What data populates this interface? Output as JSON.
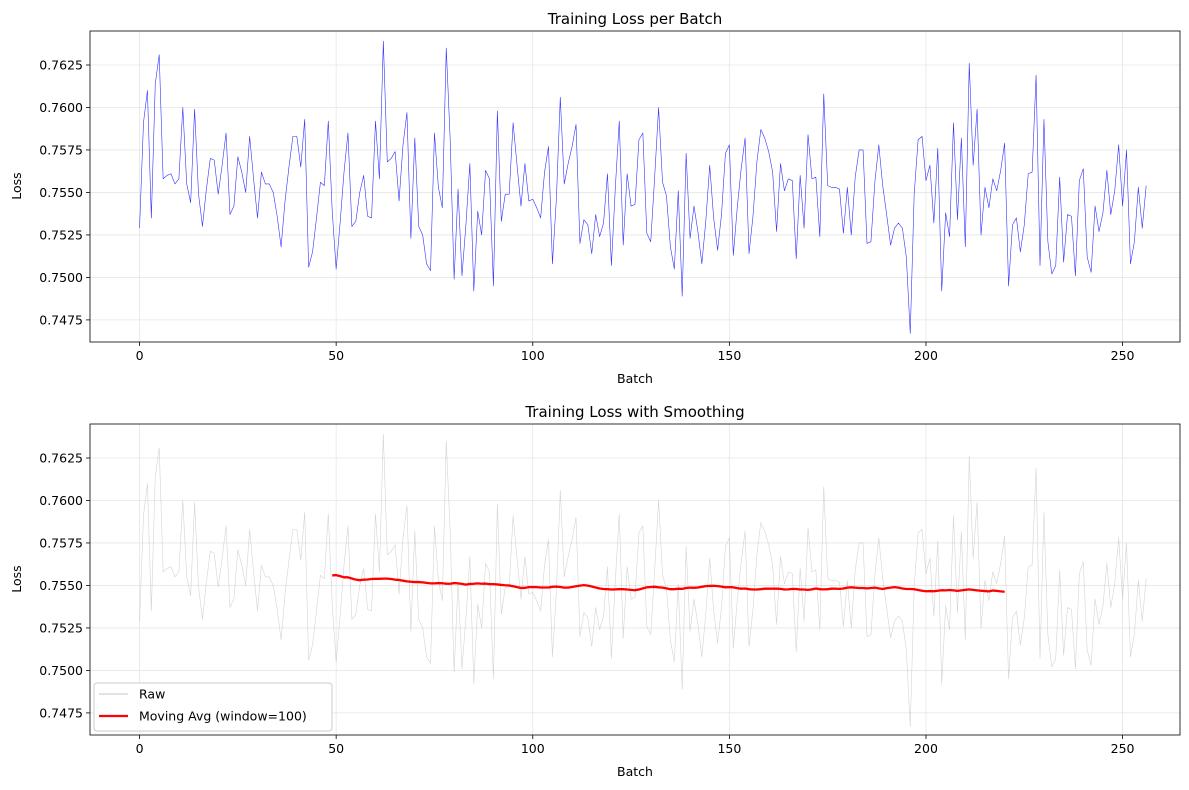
{
  "chart_data": [
    {
      "type": "line",
      "title": "Training Loss per Batch",
      "xlabel": "Batch",
      "ylabel": "Loss",
      "xlim": [
        -12.6,
        264.6
      ],
      "ylim": [
        0.7462,
        0.7645
      ],
      "xticks": [
        0,
        50,
        100,
        150,
        200,
        250
      ],
      "yticks": [
        0.7475,
        0.75,
        0.7525,
        0.755,
        0.7575,
        0.76,
        0.7625
      ],
      "ytick_labels": [
        "0.7475",
        "0.7500",
        "0.7525",
        "0.7550",
        "0.7575",
        "0.7600",
        "0.7625"
      ],
      "grid": true,
      "series": [
        {
          "color": "#0000ff",
          "x_start": 0,
          "values": [
            0.7529,
            0.7591,
            0.761,
            0.7535,
            0.7614,
            0.7631,
            0.7558,
            0.756,
            0.7561,
            0.7555,
            0.7558,
            0.76,
            0.7555,
            0.7544,
            0.7599,
            0.7549,
            0.753,
            0.7552,
            0.757,
            0.7569,
            0.7549,
            0.7566,
            0.7585,
            0.7537,
            0.7542,
            0.7571,
            0.7562,
            0.755,
            0.7583,
            0.7558,
            0.7535,
            0.7562,
            0.7555,
            0.7555,
            0.755,
            0.7536,
            0.7518,
            0.7545,
            0.7565,
            0.7583,
            0.7583,
            0.7565,
            0.7593,
            0.7506,
            0.7515,
            0.7535,
            0.7556,
            0.7554,
            0.7592,
            0.7539,
            0.7505,
            0.7532,
            0.7562,
            0.7585,
            0.753,
            0.7533,
            0.755,
            0.756,
            0.7536,
            0.7535,
            0.7592,
            0.7558,
            0.7639,
            0.7568,
            0.757,
            0.7574,
            0.7545,
            0.7578,
            0.7597,
            0.7523,
            0.7582,
            0.753,
            0.7525,
            0.7508,
            0.7504,
            0.7585,
            0.7553,
            0.7541,
            0.7635,
            0.7581,
            0.7499,
            0.7552,
            0.7501,
            0.7531,
            0.7567,
            0.7492,
            0.7539,
            0.7525,
            0.7563,
            0.7558,
            0.7495,
            0.7598,
            0.7533,
            0.7549,
            0.7549,
            0.7591,
            0.7566,
            0.7542,
            0.7567,
            0.7545,
            0.7546,
            0.7541,
            0.7535,
            0.7562,
            0.7577,
            0.7508,
            0.7546,
            0.7606,
            0.7555,
            0.7567,
            0.7577,
            0.759,
            0.752,
            0.7534,
            0.7531,
            0.7514,
            0.7537,
            0.7524,
            0.7532,
            0.7561,
            0.7507,
            0.7553,
            0.7592,
            0.7519,
            0.7561,
            0.7542,
            0.7543,
            0.7581,
            0.7585,
            0.7526,
            0.7521,
            0.7559,
            0.76,
            0.7556,
            0.7548,
            0.7518,
            0.7505,
            0.7551,
            0.7489,
            0.7573,
            0.7523,
            0.7542,
            0.7527,
            0.7508,
            0.7533,
            0.7566,
            0.7535,
            0.7516,
            0.7537,
            0.7573,
            0.7578,
            0.7513,
            0.7541,
            0.7564,
            0.7582,
            0.7514,
            0.7536,
            0.7568,
            0.7587,
            0.7582,
            0.7574,
            0.7562,
            0.7527,
            0.7567,
            0.7551,
            0.7558,
            0.7557,
            0.7511,
            0.756,
            0.7529,
            0.7584,
            0.7558,
            0.7559,
            0.7524,
            0.7608,
            0.7554,
            0.7553,
            0.7553,
            0.7552,
            0.7526,
            0.7553,
            0.7525,
            0.7559,
            0.7575,
            0.7575,
            0.752,
            0.7521,
            0.7556,
            0.7578,
            0.7554,
            0.7537,
            0.7519,
            0.7529,
            0.7532,
            0.7529,
            0.7512,
            0.7467,
            0.7549,
            0.7581,
            0.7583,
            0.7557,
            0.7566,
            0.7532,
            0.7576,
            0.7492,
            0.7538,
            0.7524,
            0.7591,
            0.7534,
            0.7582,
            0.7518,
            0.7626,
            0.7566,
            0.7599,
            0.7525,
            0.7553,
            0.7541,
            0.7558,
            0.7551,
            0.7563,
            0.7579,
            0.7495,
            0.7531,
            0.7535,
            0.7515,
            0.7531,
            0.7561,
            0.7562,
            0.7619,
            0.7507,
            0.7593,
            0.7521,
            0.7502,
            0.7507,
            0.7559,
            0.7509,
            0.7537,
            0.7536,
            0.7501,
            0.7557,
            0.7564,
            0.7512,
            0.7503,
            0.7542,
            0.7527,
            0.7538,
            0.7563,
            0.7537,
            0.7551,
            0.7578,
            0.7542,
            0.7575,
            0.7508,
            0.7521,
            0.7553,
            0.7529,
            0.7554
          ]
        }
      ]
    },
    {
      "type": "line",
      "title": "Training Loss with Smoothing",
      "xlabel": "Batch",
      "ylabel": "Loss",
      "xlim": [
        -12.6,
        264.6
      ],
      "ylim": [
        0.7462,
        0.7645
      ],
      "xticks": [
        0,
        50,
        100,
        150,
        200,
        250
      ],
      "yticks": [
        0.7475,
        0.75,
        0.7525,
        0.755,
        0.7575,
        0.76,
        0.7625
      ],
      "ytick_labels": [
        "0.7475",
        "0.7500",
        "0.7525",
        "0.7550",
        "0.7575",
        "0.7600",
        "0.7625"
      ],
      "grid": true,
      "legend_position": "lower-left",
      "series": [
        {
          "name": "Raw",
          "color": "#b0b0b0",
          "raw_of": 0
        },
        {
          "name": "Moving Avg (window=100)",
          "color": "#ff0000",
          "x_start": 49,
          "values": [
            0.75559,
            0.75561,
            0.75555,
            0.75548,
            0.75548,
            0.75541,
            0.75534,
            0.75531,
            0.75534,
            0.75535,
            0.75538,
            0.75539,
            0.75539,
            0.7554,
            0.7554,
            0.75538,
            0.75534,
            0.75532,
            0.75528,
            0.75524,
            0.75522,
            0.7552,
            0.7552,
            0.75518,
            0.75515,
            0.75512,
            0.75512,
            0.75514,
            0.75513,
            0.7551,
            0.7551,
            0.75514,
            0.75512,
            0.75509,
            0.75505,
            0.75509,
            0.7551,
            0.75512,
            0.7551,
            0.75511,
            0.75508,
            0.75508,
            0.75506,
            0.75503,
            0.75501,
            0.755,
            0.75495,
            0.7549,
            0.75485,
            0.75486,
            0.7549,
            0.75491,
            0.7549,
            0.75488,
            0.75488,
            0.75488,
            0.75492,
            0.75493,
            0.75491,
            0.75487,
            0.75487,
            0.75491,
            0.75495,
            0.75499,
            0.75502,
            0.75499,
            0.75494,
            0.75488,
            0.75482,
            0.75479,
            0.75478,
            0.75476,
            0.75477,
            0.75478,
            0.75478,
            0.75476,
            0.75474,
            0.75472,
            0.75476,
            0.75483,
            0.75489,
            0.75491,
            0.75492,
            0.75489,
            0.75487,
            0.75483,
            0.75478,
            0.75478,
            0.75481,
            0.7548,
            0.75485,
            0.75487,
            0.75486,
            0.75488,
            0.75492,
            0.75496,
            0.75497,
            0.75498,
            0.75496,
            0.75493,
            0.75489,
            0.7549,
            0.75489,
            0.75484,
            0.75481,
            0.75482,
            0.75478,
            0.75476,
            0.75476,
            0.75478,
            0.75481,
            0.75481,
            0.75481,
            0.75481,
            0.7548,
            0.75476,
            0.75477,
            0.7548,
            0.75479,
            0.75476,
            0.75476,
            0.75474,
            0.75477,
            0.75482,
            0.75478,
            0.75477,
            0.75478,
            0.75481,
            0.75481,
            0.7548,
            0.75482,
            0.75487,
            0.75489,
            0.75487,
            0.75485,
            0.75485,
            0.75483,
            0.75485,
            0.75487,
            0.75483,
            0.75479,
            0.75484,
            0.75487,
            0.7549,
            0.75487,
            0.75482,
            0.75479,
            0.75479,
            0.75478,
            0.75473,
            0.75469,
            0.75466,
            0.75467,
            0.75466,
            0.75469,
            0.75472,
            0.75471,
            0.75473,
            0.75471,
            0.75468,
            0.75471,
            0.75474,
            0.75477,
            0.75474,
            0.75471,
            0.75469,
            0.75467,
            0.75465,
            0.7547,
            0.75468,
            0.75465,
            0.75463
          ]
        }
      ]
    }
  ]
}
